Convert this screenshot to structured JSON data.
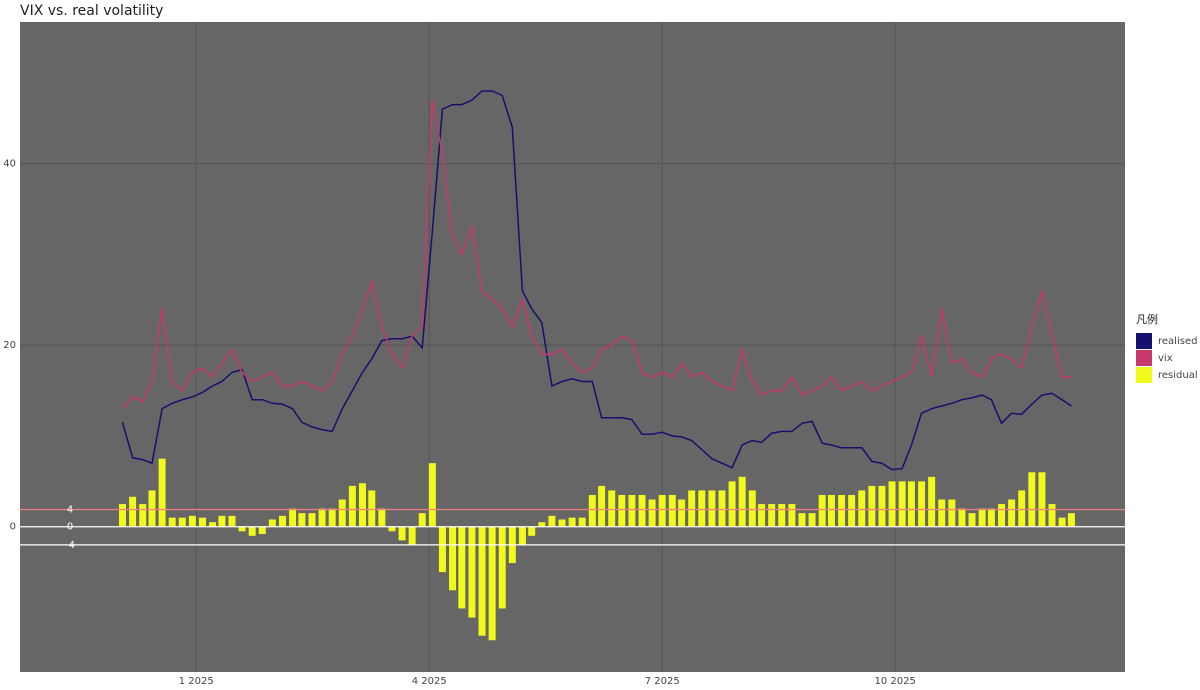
{
  "chart_data": {
    "type": "line",
    "title": "VIX vs. real volatility",
    "legend_title": "凡例",
    "legend_position": "right",
    "xlim": [
      -1.27,
      12.96
    ],
    "xticks": [
      {
        "value": 1,
        "label": "1 2025"
      },
      {
        "value": 4,
        "label": "4 2025"
      },
      {
        "value": 7,
        "label": "7 2025"
      },
      {
        "value": 10,
        "label": "10 2025"
      }
    ],
    "ylim": [
      -16,
      55.6
    ],
    "yticks": [
      0,
      20,
      40
    ],
    "grid": true,
    "reference_lines": [
      {
        "value": 1.9,
        "label": "4",
        "color": "#f08080"
      },
      {
        "value": 0,
        "label": "0",
        "color": "#ffffff"
      },
      {
        "value": -2,
        "label": "-4",
        "color": "#ffffff"
      }
    ],
    "x": [
      0.05,
      0.18,
      0.31,
      0.43,
      0.56,
      0.69,
      0.82,
      0.95,
      1.08,
      1.21,
      1.33,
      1.46,
      1.59,
      1.72,
      1.85,
      1.98,
      2.11,
      2.24,
      2.36,
      2.49,
      2.62,
      2.75,
      2.88,
      3.01,
      3.14,
      3.26,
      3.39,
      3.52,
      3.65,
      3.78,
      3.91,
      4.04,
      4.17,
      4.3,
      4.42,
      4.55,
      4.68,
      4.81,
      4.94,
      5.07,
      5.2,
      5.32,
      5.45,
      5.58,
      5.71,
      5.84,
      5.97,
      6.1,
      6.22,
      6.35,
      6.48,
      6.61,
      6.74,
      6.87,
      7.0,
      7.13,
      7.25,
      7.38,
      7.51,
      7.64,
      7.77,
      7.9,
      8.03,
      8.16,
      8.28,
      8.41,
      8.54,
      8.67,
      8.8,
      8.93,
      9.06,
      9.18,
      9.31,
      9.44,
      9.57,
      9.7,
      9.83,
      9.96,
      10.09,
      10.21,
      10.34,
      10.47,
      10.6,
      10.73,
      10.86,
      10.99,
      11.12,
      11.24,
      11.37,
      11.5,
      11.63,
      11.76,
      11.89,
      12.02,
      12.15,
      12.27
    ],
    "series": [
      {
        "name": "realised",
        "type": "line",
        "color": "#16106e",
        "values": [
          11.5,
          7.6,
          7.4,
          7,
          13,
          13.6,
          14,
          14.3,
          14.8,
          15.5,
          16,
          17,
          17.3,
          14,
          14,
          13.6,
          13.5,
          13,
          11.5,
          11,
          10.7,
          10.5,
          13,
          15,
          17,
          18.5,
          20.5,
          20.7,
          20.7,
          21,
          19.7,
          32.5,
          46,
          46.5,
          46.5,
          47,
          48,
          48,
          47.5,
          44,
          26,
          24,
          22.5,
          15.5,
          16,
          16.3,
          16,
          16,
          12,
          12,
          12,
          11.8,
          10.2,
          10.2,
          10.4,
          10,
          9.9,
          9.5,
          8.5,
          7.5,
          7,
          6.5,
          9,
          9.5,
          9.3,
          10.3,
          10.5,
          10.5,
          11.4,
          11.6,
          9.2,
          9,
          8.7,
          8.7,
          8.7,
          7.2,
          7,
          6.3,
          6.4,
          9,
          12.5,
          13,
          13.3,
          13.6,
          14,
          14.2,
          14.5,
          14,
          11.4,
          12.5,
          12.4,
          13.5,
          14.5,
          14.7,
          14,
          13.3
        ]
      },
      {
        "name": "vix",
        "type": "line",
        "color": "#c8386c",
        "values": [
          13,
          14.3,
          13.8,
          16,
          24,
          16,
          15,
          17,
          17.5,
          16.5,
          18,
          19.5,
          17,
          16,
          16.5,
          17,
          15.5,
          15.5,
          16,
          15.5,
          15,
          16,
          19,
          21,
          24,
          27,
          22,
          19,
          17.5,
          21,
          22,
          47,
          41,
          32,
          30,
          33,
          26,
          25,
          24,
          22,
          25,
          21,
          19,
          19,
          19.5,
          18,
          17,
          17.5,
          19.5,
          20,
          21,
          20.5,
          17,
          16.5,
          17,
          16.5,
          18,
          16.5,
          17,
          16,
          15.5,
          15,
          19.5,
          16,
          14.5,
          15,
          15,
          16.5,
          14.5,
          15,
          15.5,
          16.5,
          15,
          15.5,
          16,
          15,
          15.5,
          16,
          16.5,
          17,
          21,
          16.5,
          24,
          18,
          18.5,
          17,
          16.5,
          18.5,
          19,
          18.5,
          17.5,
          22,
          26,
          21,
          16.5,
          16.5
        ]
      },
      {
        "name": "residual",
        "type": "bar",
        "color": "#f2fa1c",
        "values": [
          2.5,
          3.3,
          2.5,
          4,
          7.5,
          1,
          1,
          1.2,
          1,
          0.5,
          1.2,
          1.2,
          -0.5,
          -1,
          -0.8,
          0.8,
          1.2,
          2,
          1.5,
          1.5,
          2,
          2,
          3,
          4.5,
          4.8,
          4,
          2,
          -0.5,
          -1.5,
          -2,
          1.5,
          7,
          -5,
          -7,
          -9,
          -10,
          -12,
          -12.5,
          -9,
          -4,
          -2,
          -1,
          0.5,
          1.2,
          0.8,
          1,
          1,
          3.5,
          4.5,
          4,
          3.5,
          3.5,
          3.5,
          3,
          3.5,
          3.5,
          3,
          4,
          4,
          4,
          4,
          5,
          5.5,
          4,
          2.5,
          2.5,
          2.5,
          2.5,
          1.5,
          1.5,
          3.5,
          3.5,
          3.5,
          3.5,
          4,
          4.5,
          4.5,
          5,
          5,
          5,
          5,
          5.5,
          3,
          3,
          2,
          1.5,
          2,
          2,
          2.5,
          3,
          4,
          6,
          6,
          2.5,
          1,
          1.5
        ]
      }
    ]
  }
}
